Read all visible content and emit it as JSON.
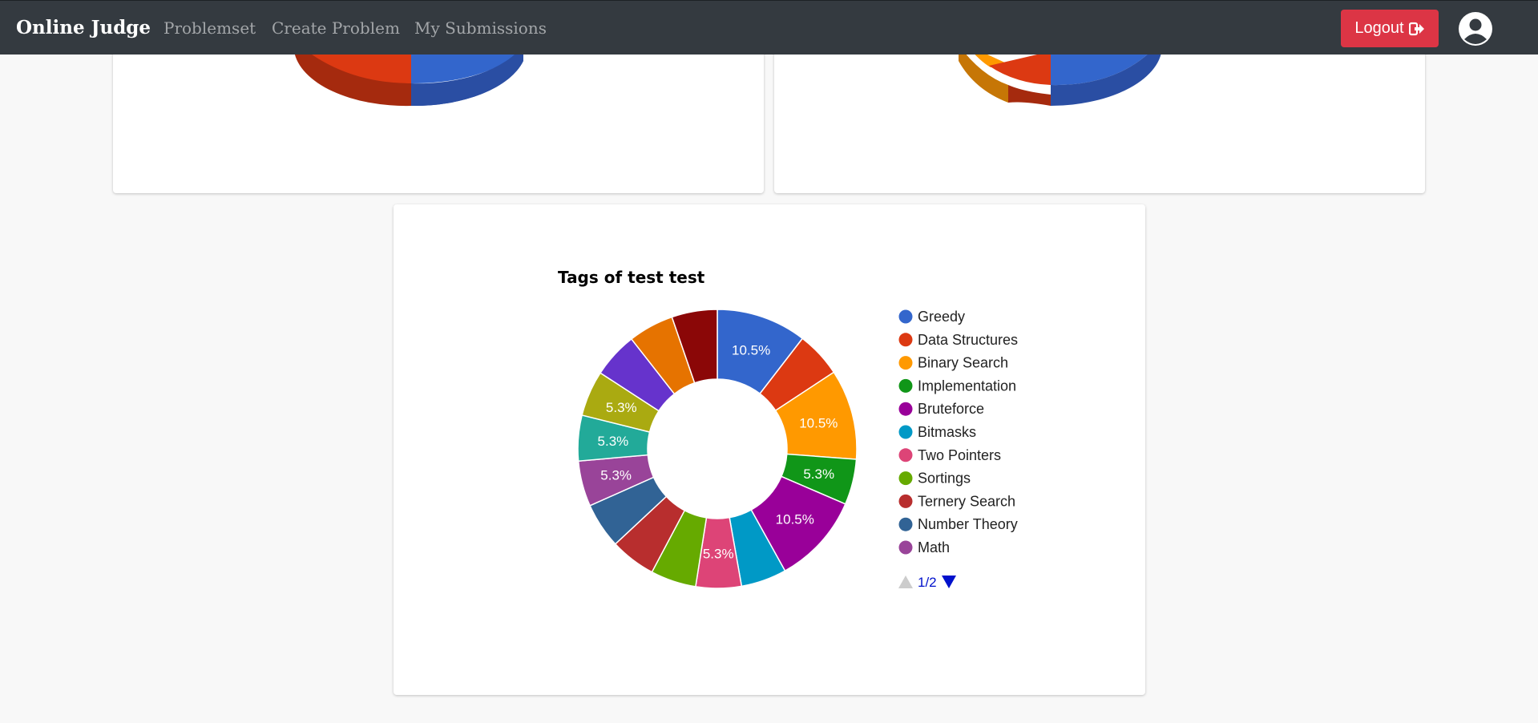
{
  "navbar": {
    "brand": "Online Judge",
    "links": [
      "Problemset",
      "Create Problem",
      "My Submissions"
    ],
    "logout_label": "Logout"
  },
  "top_charts": [
    {
      "note": "partially scrolled pie chart (top cut off)"
    },
    {
      "note": "partially scrolled pie chart (top cut off)"
    }
  ],
  "chart_data": {
    "type": "pie",
    "title": "Tags of test test",
    "donut": true,
    "legend_position": "right",
    "legend_page": "1/2",
    "slices": [
      {
        "label": "Greedy",
        "value": 10.5,
        "color": "#3366cc",
        "show_label": true
      },
      {
        "label": "Data Structures",
        "value": 5.3,
        "color": "#dc3912",
        "show_label": false
      },
      {
        "label": "Binary Search",
        "value": 10.5,
        "color": "#ff9900",
        "show_label": true
      },
      {
        "label": "Implementation",
        "value": 5.3,
        "color": "#109618",
        "show_label": true
      },
      {
        "label": "Bruteforce",
        "value": 10.5,
        "color": "#990099",
        "show_label": true
      },
      {
        "label": "Bitmasks",
        "value": 5.3,
        "color": "#0099c6",
        "show_label": false
      },
      {
        "label": "Two Pointers",
        "value": 5.3,
        "color": "#dd4477",
        "show_label": true
      },
      {
        "label": "Sortings",
        "value": 5.3,
        "color": "#66aa00",
        "show_label": false
      },
      {
        "label": "Ternery Search",
        "value": 5.3,
        "color": "#b82e2e",
        "show_label": false
      },
      {
        "label": "Number Theory",
        "value": 5.3,
        "color": "#316395",
        "show_label": false
      },
      {
        "label": "Math",
        "value": 5.3,
        "color": "#994499",
        "show_label": true
      },
      {
        "label": "",
        "value": 5.3,
        "color": "#22aa99",
        "show_label": true
      },
      {
        "label": "",
        "value": 5.3,
        "color": "#aaaa11",
        "show_label": true
      },
      {
        "label": "",
        "value": 5.3,
        "color": "#6633cc",
        "show_label": false
      },
      {
        "label": "",
        "value": 5.3,
        "color": "#e67300",
        "show_label": false
      },
      {
        "label": "",
        "value": 5.3,
        "color": "#8b0707",
        "show_label": false
      }
    ],
    "slice_label_text": [
      "10.5%",
      "",
      "10.5%",
      "5.3%",
      "10.5%",
      "",
      "5.3%",
      "",
      "",
      "",
      "5.3%",
      "5.3%",
      "5.3%",
      "",
      "",
      ""
    ]
  }
}
